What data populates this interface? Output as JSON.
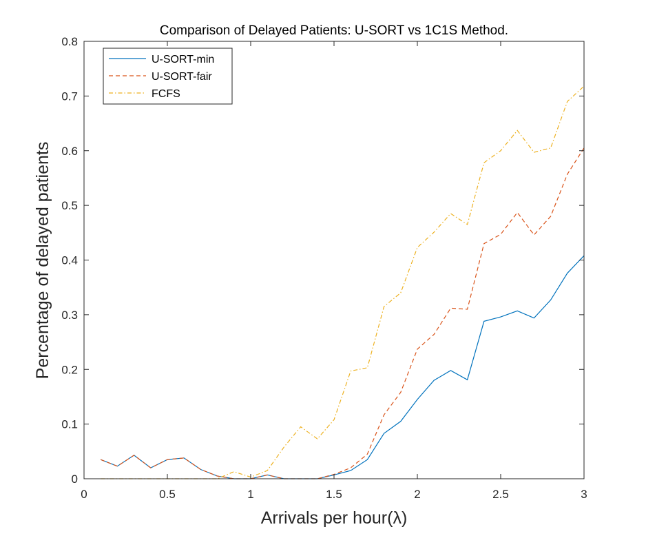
{
  "chart_data": {
    "type": "line",
    "title": "Comparison of Delayed Patients: U-SORT vs 1C1S Method.",
    "xlabel": "Arrivals per hour(λ)",
    "ylabel": "Percentage of delayed patients",
    "xlim": [
      0,
      3
    ],
    "ylim": [
      0,
      0.8
    ],
    "xticks": [
      "0",
      "0.5",
      "1",
      "1.5",
      "2",
      "2.5",
      "3"
    ],
    "yticks": [
      "0",
      "0.1",
      "0.2",
      "0.3",
      "0.4",
      "0.5",
      "0.6",
      "0.7",
      "0.8"
    ],
    "x": [
      0.1,
      0.2,
      0.3,
      0.4,
      0.5,
      0.6,
      0.7,
      0.8,
      0.9,
      1.0,
      1.1,
      1.2,
      1.3,
      1.4,
      1.5,
      1.6,
      1.7,
      1.8,
      1.9,
      2.0,
      2.1,
      2.2,
      2.3,
      2.4,
      2.5,
      2.6,
      2.7,
      2.8,
      2.9,
      3.0
    ],
    "series": [
      {
        "name": "U-SORT-min",
        "color": "#0072BD",
        "dash": "solid",
        "values": [
          0.035,
          0.023,
          0.043,
          0.02,
          0.035,
          0.038,
          0.017,
          0.005,
          0.0,
          0.0,
          0.007,
          0.0,
          0.0,
          0.0,
          0.007,
          0.015,
          0.035,
          0.083,
          0.105,
          0.145,
          0.18,
          0.198,
          0.181,
          0.288,
          0.296,
          0.307,
          0.294,
          0.327,
          0.376,
          0.408
        ]
      },
      {
        "name": "U-SORT-fair",
        "color": "#D95319",
        "dash": "dashed",
        "values": [
          0.035,
          0.023,
          0.043,
          0.02,
          0.035,
          0.038,
          0.017,
          0.005,
          0.0,
          0.0,
          0.007,
          0.0,
          0.0,
          0.0,
          0.008,
          0.02,
          0.045,
          0.117,
          0.158,
          0.237,
          0.264,
          0.312,
          0.31,
          0.43,
          0.447,
          0.487,
          0.446,
          0.48,
          0.557,
          0.605
        ]
      },
      {
        "name": "FCFS",
        "color": "#EDB120",
        "dash": "dashdot",
        "values": [
          0.0,
          0.0,
          0.0,
          0.0,
          0.0,
          0.0,
          0.0,
          0.0,
          0.013,
          0.003,
          0.015,
          0.058,
          0.095,
          0.073,
          0.108,
          0.197,
          0.203,
          0.315,
          0.34,
          0.423,
          0.451,
          0.485,
          0.465,
          0.578,
          0.6,
          0.637,
          0.597,
          0.605,
          0.69,
          0.718
        ]
      }
    ],
    "legend_position": "top-left",
    "grid": false
  }
}
